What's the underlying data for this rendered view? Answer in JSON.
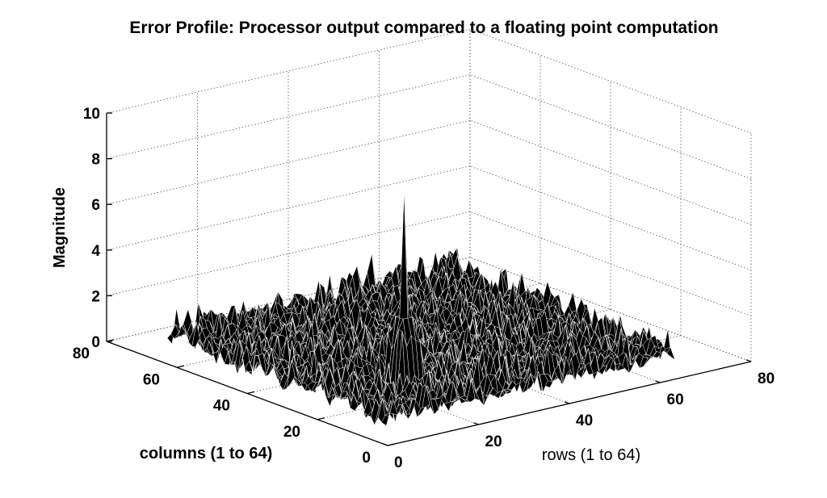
{
  "chart_data": {
    "type": "surface",
    "title": "Error Profile: Processor output compared to a floating point computation",
    "zlabel": "Magnitude",
    "xlabel": "columns (1 to 64)",
    "ylabel": "rows (1 to 64)",
    "xlim": [
      0,
      80
    ],
    "ylim": [
      0,
      80
    ],
    "zlim": [
      0,
      10
    ],
    "x_ticks": [
      "0",
      "20",
      "40",
      "60",
      "80"
    ],
    "y_ticks": [
      "0",
      "20",
      "40",
      "60",
      "80"
    ],
    "z_ticks": [
      "0",
      "2",
      "4",
      "6",
      "8",
      "10"
    ],
    "grid": true,
    "colors": {
      "face": "#000000",
      "edge": "#ffffff"
    },
    "surface_summary": {
      "grid_size": [
        64,
        64
      ],
      "baseline_magnitude_range": [
        0,
        2.5
      ],
      "peak": {
        "column": 16,
        "row": 16,
        "magnitude": 9.5
      }
    }
  }
}
